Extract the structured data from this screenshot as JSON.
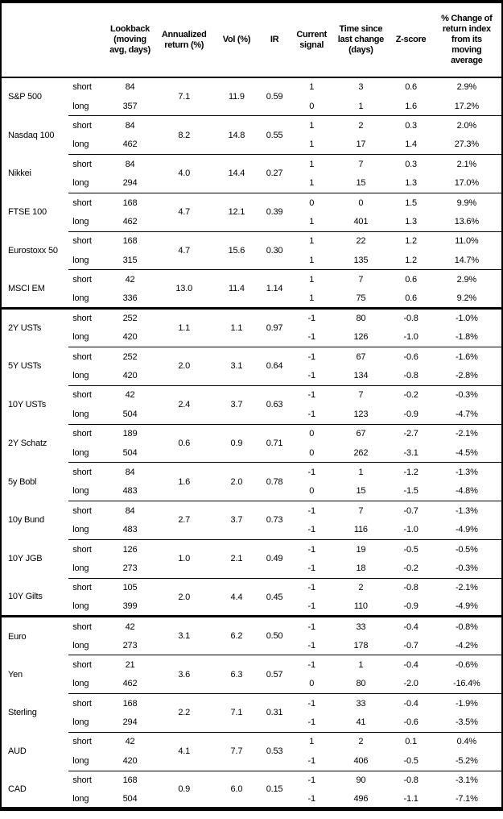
{
  "header": {
    "asset_col": "",
    "lookback": "Lookback\n(moving\navg, days)",
    "annualized_return": "Annualized\nreturn (%)",
    "vol": "Vol (%)",
    "ir": "IR",
    "current_signal": "Current\nsignal",
    "time_since": "Time since\nlast change\n(days)",
    "z_score": "Z-score",
    "pct_change": "% Change of\nreturn index\nfrom its\nmoving\naverage"
  },
  "horizon_labels": {
    "short": "short",
    "long": "long"
  },
  "assets": [
    {
      "name": "S&P 500",
      "section_start": false,
      "lookback_short": "84",
      "lookback_long": "357",
      "ann_return": "7.1",
      "vol": "11.9",
      "ir": "0.59",
      "signal_short": "1",
      "signal_long": "0",
      "time_short": "3",
      "time_long": "1",
      "z_short": "0.6",
      "z_long": "1.6",
      "pct_short": "2.9%",
      "pct_long": "17.2%"
    },
    {
      "name": "Nasdaq 100",
      "section_start": false,
      "lookback_short": "84",
      "lookback_long": "462",
      "ann_return": "8.2",
      "vol": "14.8",
      "ir": "0.55",
      "signal_short": "1",
      "signal_long": "1",
      "time_short": "2",
      "time_long": "17",
      "z_short": "0.3",
      "z_long": "1.4",
      "pct_short": "2.0%",
      "pct_long": "27.3%"
    },
    {
      "name": "Nikkei",
      "section_start": false,
      "lookback_short": "84",
      "lookback_long": "294",
      "ann_return": "4.0",
      "vol": "14.4",
      "ir": "0.27",
      "signal_short": "1",
      "signal_long": "1",
      "time_short": "7",
      "time_long": "15",
      "z_short": "0.3",
      "z_long": "1.3",
      "pct_short": "2.1%",
      "pct_long": "17.0%"
    },
    {
      "name": "FTSE 100",
      "section_start": false,
      "lookback_short": "168",
      "lookback_long": "462",
      "ann_return": "4.7",
      "vol": "12.1",
      "ir": "0.39",
      "signal_short": "0",
      "signal_long": "1",
      "time_short": "0",
      "time_long": "401",
      "z_short": "1.5",
      "z_long": "1.3",
      "pct_short": "9.9%",
      "pct_long": "13.6%"
    },
    {
      "name": "Eurostoxx 50",
      "section_start": false,
      "lookback_short": "168",
      "lookback_long": "315",
      "ann_return": "4.7",
      "vol": "15.6",
      "ir": "0.30",
      "signal_short": "1",
      "signal_long": "1",
      "time_short": "22",
      "time_long": "135",
      "z_short": "1.2",
      "z_long": "1.2",
      "pct_short": "11.0%",
      "pct_long": "14.7%"
    },
    {
      "name": "MSCI EM",
      "section_start": false,
      "lookback_short": "42",
      "lookback_long": "336",
      "ann_return": "13.0",
      "vol": "11.4",
      "ir": "1.14",
      "signal_short": "1",
      "signal_long": "1",
      "time_short": "7",
      "time_long": "75",
      "z_short": "0.6",
      "z_long": "0.6",
      "pct_short": "2.9%",
      "pct_long": "9.2%"
    },
    {
      "name": "2Y USTs",
      "section_start": true,
      "lookback_short": "252",
      "lookback_long": "420",
      "ann_return": "1.1",
      "vol": "1.1",
      "ir": "0.97",
      "signal_short": "-1",
      "signal_long": "-1",
      "time_short": "80",
      "time_long": "126",
      "z_short": "-0.8",
      "z_long": "-1.0",
      "pct_short": "-1.0%",
      "pct_long": "-1.8%"
    },
    {
      "name": "5Y USTs",
      "section_start": false,
      "lookback_short": "252",
      "lookback_long": "420",
      "ann_return": "2.0",
      "vol": "3.1",
      "ir": "0.64",
      "signal_short": "-1",
      "signal_long": "-1",
      "time_short": "67",
      "time_long": "134",
      "z_short": "-0.6",
      "z_long": "-0.8",
      "pct_short": "-1.6%",
      "pct_long": "-2.8%"
    },
    {
      "name": "10Y USTs",
      "section_start": false,
      "lookback_short": "42",
      "lookback_long": "504",
      "ann_return": "2.4",
      "vol": "3.7",
      "ir": "0.63",
      "signal_short": "-1",
      "signal_long": "-1",
      "time_short": "7",
      "time_long": "123",
      "z_short": "-0.2",
      "z_long": "-0.9",
      "pct_short": "-0.3%",
      "pct_long": "-4.7%"
    },
    {
      "name": "2Y Schatz",
      "section_start": false,
      "lookback_short": "189",
      "lookback_long": "504",
      "ann_return": "0.6",
      "vol": "0.9",
      "ir": "0.71",
      "signal_short": "0",
      "signal_long": "0",
      "time_short": "67",
      "time_long": "262",
      "z_short": "-2.7",
      "z_long": "-3.1",
      "pct_short": "-2.1%",
      "pct_long": "-4.5%"
    },
    {
      "name": "5y Bobl",
      "section_start": false,
      "lookback_short": "84",
      "lookback_long": "483",
      "ann_return": "1.6",
      "vol": "2.0",
      "ir": "0.78",
      "signal_short": "-1",
      "signal_long": "0",
      "time_short": "1",
      "time_long": "15",
      "z_short": "-1.2",
      "z_long": "-1.5",
      "pct_short": "-1.3%",
      "pct_long": "-4.8%"
    },
    {
      "name": "10y Bund",
      "section_start": false,
      "lookback_short": "84",
      "lookback_long": "483",
      "ann_return": "2.7",
      "vol": "3.7",
      "ir": "0.73",
      "signal_short": "-1",
      "signal_long": "-1",
      "time_short": "7",
      "time_long": "116",
      "z_short": "-0.7",
      "z_long": "-1.0",
      "pct_short": "-1.3%",
      "pct_long": "-4.9%"
    },
    {
      "name": "10Y JGB",
      "section_start": false,
      "lookback_short": "126",
      "lookback_long": "273",
      "ann_return": "1.0",
      "vol": "2.1",
      "ir": "0.49",
      "signal_short": "-1",
      "signal_long": "-1",
      "time_short": "19",
      "time_long": "18",
      "z_short": "-0.5",
      "z_long": "-0.2",
      "pct_short": "-0.5%",
      "pct_long": "-0.3%"
    },
    {
      "name": "10Y Gilts",
      "section_start": false,
      "lookback_short": "105",
      "lookback_long": "399",
      "ann_return": "2.0",
      "vol": "4.4",
      "ir": "0.45",
      "signal_short": "-1",
      "signal_long": "-1",
      "time_short": "2",
      "time_long": "110",
      "z_short": "-0.8",
      "z_long": "-0.9",
      "pct_short": "-2.1%",
      "pct_long": "-4.9%"
    },
    {
      "name": "Euro",
      "section_start": true,
      "lookback_short": "42",
      "lookback_long": "273",
      "ann_return": "3.1",
      "vol": "6.2",
      "ir": "0.50",
      "signal_short": "-1",
      "signal_long": "-1",
      "time_short": "33",
      "time_long": "178",
      "z_short": "-0.4",
      "z_long": "-0.7",
      "pct_short": "-0.8%",
      "pct_long": "-4.2%"
    },
    {
      "name": "Yen",
      "section_start": false,
      "lookback_short": "21",
      "lookback_long": "462",
      "ann_return": "3.6",
      "vol": "6.3",
      "ir": "0.57",
      "signal_short": "-1",
      "signal_long": "0",
      "time_short": "1",
      "time_long": "80",
      "z_short": "-0.4",
      "z_long": "-2.0",
      "pct_short": "-0.6%",
      "pct_long": "-16.4%"
    },
    {
      "name": "Sterling",
      "section_start": false,
      "lookback_short": "168",
      "lookback_long": "294",
      "ann_return": "2.2",
      "vol": "7.1",
      "ir": "0.31",
      "signal_short": "-1",
      "signal_long": "-1",
      "time_short": "33",
      "time_long": "41",
      "z_short": "-0.4",
      "z_long": "-0.6",
      "pct_short": "-1.9%",
      "pct_long": "-3.5%"
    },
    {
      "name": "AUD",
      "section_start": false,
      "lookback_short": "42",
      "lookback_long": "420",
      "ann_return": "4.1",
      "vol": "7.7",
      "ir": "0.53",
      "signal_short": "1",
      "signal_long": "-1",
      "time_short": "2",
      "time_long": "406",
      "z_short": "0.1",
      "z_long": "-0.5",
      "pct_short": "0.4%",
      "pct_long": "-5.2%"
    },
    {
      "name": "CAD",
      "section_start": false,
      "lookback_short": "168",
      "lookback_long": "504",
      "ann_return": "0.9",
      "vol": "6.0",
      "ir": "0.15",
      "signal_short": "-1",
      "signal_long": "-1",
      "time_short": "90",
      "time_long": "496",
      "z_short": "-0.8",
      "z_long": "-1.1",
      "pct_short": "-3.1%",
      "pct_long": "-7.1%"
    }
  ]
}
